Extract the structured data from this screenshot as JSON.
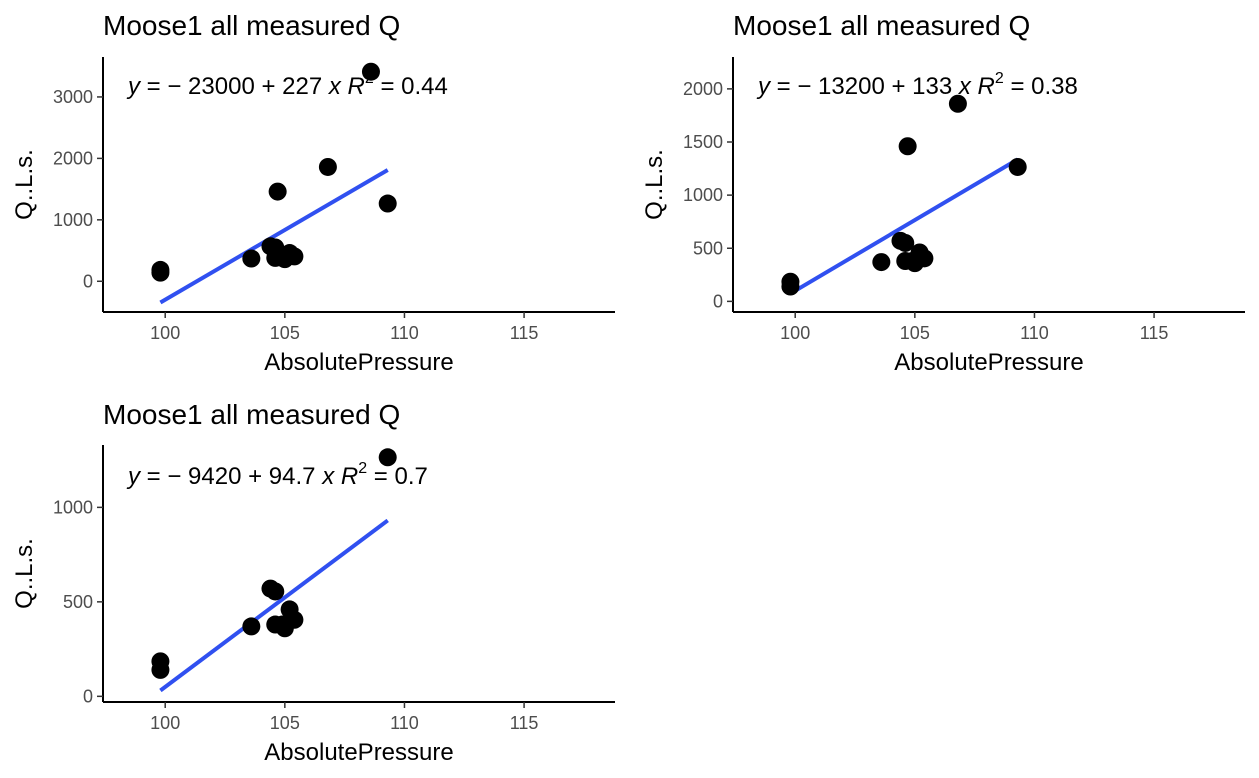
{
  "chart_data": [
    {
      "type": "scatter",
      "title": "Moose1 all measured Q",
      "xlabel": "AbsolutePressure",
      "ylabel": "Q..L.s.",
      "xlim": [
        97.4,
        118.8
      ],
      "ylim": [
        -500,
        3650
      ],
      "xticks": [
        100,
        105,
        110,
        115
      ],
      "yticks": [
        0,
        1000,
        2000,
        3000
      ],
      "grid": false,
      "equation": {
        "y_var": "y",
        "intercept": "23000",
        "slope": "227",
        "x_var": "x",
        "r_var": "R",
        "r_exp": "2",
        "r_value": "0.44"
      },
      "fit": {
        "x": [
          99.8,
          109.3
        ]
      },
      "points": [
        {
          "x": 99.8,
          "y": 140
        },
        {
          "x": 99.8,
          "y": 185
        },
        {
          "x": 103.6,
          "y": 370
        },
        {
          "x": 104.4,
          "y": 570
        },
        {
          "x": 104.6,
          "y": 550
        },
        {
          "x": 104.6,
          "y": 380
        },
        {
          "x": 104.7,
          "y": 1460
        },
        {
          "x": 104.9,
          "y": 380
        },
        {
          "x": 105.0,
          "y": 360
        },
        {
          "x": 105.2,
          "y": 460
        },
        {
          "x": 105.4,
          "y": 405
        },
        {
          "x": 106.8,
          "y": 1860
        },
        {
          "x": 108.6,
          "y": 3410
        },
        {
          "x": 109.3,
          "y": 1265
        }
      ]
    },
    {
      "type": "scatter",
      "title": "Moose1 all measured Q",
      "xlabel": "AbsolutePressure",
      "ylabel": "Q..L.s.",
      "xlim": [
        97.4,
        118.8
      ],
      "ylim": [
        -100,
        2300
      ],
      "xticks": [
        100,
        105,
        110,
        115
      ],
      "yticks": [
        0,
        500,
        1000,
        1500,
        2000
      ],
      "grid": false,
      "equation": {
        "y_var": "y",
        "intercept": "13200",
        "slope": "133",
        "x_var": "x",
        "r_var": "R",
        "r_exp": "2",
        "r_value": "0.38"
      },
      "fit": {
        "x": [
          99.8,
          109.3
        ]
      },
      "points": [
        {
          "x": 99.8,
          "y": 140
        },
        {
          "x": 99.8,
          "y": 185
        },
        {
          "x": 103.6,
          "y": 370
        },
        {
          "x": 104.4,
          "y": 570
        },
        {
          "x": 104.6,
          "y": 550
        },
        {
          "x": 104.6,
          "y": 380
        },
        {
          "x": 104.7,
          "y": 1460
        },
        {
          "x": 104.9,
          "y": 380
        },
        {
          "x": 105.0,
          "y": 360
        },
        {
          "x": 105.2,
          "y": 460
        },
        {
          "x": 105.4,
          "y": 405
        },
        {
          "x": 106.8,
          "y": 1860
        },
        {
          "x": 109.3,
          "y": 1265
        }
      ]
    },
    {
      "type": "scatter",
      "title": "Moose1 all measured Q",
      "xlabel": "AbsolutePressure",
      "ylabel": "Q..L.s.",
      "xlim": [
        97.4,
        118.8
      ],
      "ylim": [
        -30,
        1330
      ],
      "xticks": [
        100,
        105,
        110,
        115
      ],
      "yticks": [
        0,
        500,
        1000
      ],
      "grid": false,
      "equation": {
        "y_var": "y",
        "intercept": "9420",
        "slope": "94.7",
        "x_var": "x",
        "r_var": "R",
        "r_exp": "2",
        "r_value": "0.7"
      },
      "fit": {
        "x": [
          99.8,
          109.3
        ]
      },
      "points": [
        {
          "x": 99.8,
          "y": 140
        },
        {
          "x": 99.8,
          "y": 185
        },
        {
          "x": 103.6,
          "y": 370
        },
        {
          "x": 104.4,
          "y": 570
        },
        {
          "x": 104.6,
          "y": 555
        },
        {
          "x": 104.6,
          "y": 380
        },
        {
          "x": 104.9,
          "y": 380
        },
        {
          "x": 105.0,
          "y": 360
        },
        {
          "x": 105.2,
          "y": 460
        },
        {
          "x": 105.4,
          "y": 405
        },
        {
          "x": 109.3,
          "y": 1265
        }
      ]
    }
  ]
}
